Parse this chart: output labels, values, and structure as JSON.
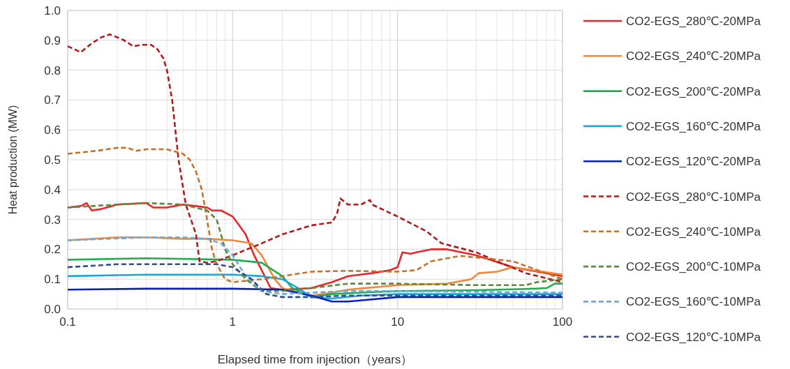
{
  "chart_data": {
    "type": "line",
    "xlabel": "Elapsed time from injection（years）",
    "ylabel": "Heat production (MW)",
    "log": "x",
    "grid": true,
    "legend": "right",
    "xlim": [
      0.1,
      100
    ],
    "xticks": [
      0.1,
      1,
      10,
      100
    ],
    "ylim": [
      0,
      1.0
    ],
    "yticks": [
      {
        "value": 0,
        "label": "0.0"
      },
      0.1,
      0.2,
      0.3,
      0.4,
      0.5,
      0.6,
      0.7,
      0.8,
      0.9,
      {
        "value": 1.0,
        "label": "1.0"
      }
    ],
    "series": [
      {
        "name": "CO2-EGS_280℃-20MPa",
        "color": "#e8262b",
        "line_style": "solid",
        "x": [
          0.1,
          0.12,
          0.13,
          0.14,
          0.16,
          0.2,
          0.3,
          0.33,
          0.4,
          0.5,
          0.6,
          0.7,
          0.75,
          0.85,
          1.0,
          1.2,
          1.35,
          1.5,
          1.7,
          2,
          3,
          4,
          5,
          7,
          9,
          10,
          10.7,
          12,
          13,
          16,
          20,
          30,
          50,
          100
        ],
        "values": [
          0.34,
          0.345,
          0.355,
          0.33,
          0.335,
          0.35,
          0.355,
          0.34,
          0.34,
          0.35,
          0.345,
          0.34,
          0.33,
          0.33,
          0.31,
          0.25,
          0.18,
          0.13,
          0.07,
          0.065,
          0.07,
          0.09,
          0.11,
          0.12,
          0.13,
          0.14,
          0.19,
          0.185,
          0.19,
          0.2,
          0.2,
          0.18,
          0.14,
          0.11
        ]
      },
      {
        "name": "CO2-EGS_240℃-20MPa",
        "color": "#f0883a",
        "line_style": "solid",
        "x": [
          0.1,
          0.2,
          0.3,
          0.5,
          0.7,
          1,
          1.3,
          1.5,
          1.8,
          2,
          2.5,
          3,
          4,
          5,
          10,
          20,
          28,
          31,
          40,
          50,
          100
        ],
        "values": [
          0.23,
          0.24,
          0.24,
          0.235,
          0.235,
          0.23,
          0.22,
          0.18,
          0.1,
          0.07,
          0.055,
          0.045,
          0.055,
          0.065,
          0.08,
          0.085,
          0.1,
          0.12,
          0.125,
          0.14,
          0.115
        ]
      },
      {
        "name": "CO2-EGS_200℃-20MPa",
        "color": "#1fae4f",
        "line_style": "solid",
        "x": [
          0.1,
          0.3,
          1,
          1.5,
          2,
          2.3,
          3,
          4,
          6,
          10,
          30,
          60,
          80,
          90,
          100
        ],
        "values": [
          0.165,
          0.17,
          0.165,
          0.155,
          0.11,
          0.07,
          0.04,
          0.05,
          0.055,
          0.06,
          0.063,
          0.067,
          0.07,
          0.085,
          0.085
        ]
      },
      {
        "name": "CO2-EGS_160℃-20MPa",
        "color": "#1aa7dc",
        "line_style": "solid",
        "x": [
          0.1,
          0.3,
          1,
          1.5,
          2,
          2.5,
          3,
          4,
          6,
          10,
          100
        ],
        "values": [
          0.11,
          0.115,
          0.115,
          0.11,
          0.1,
          0.07,
          0.04,
          0.035,
          0.045,
          0.05,
          0.05
        ]
      },
      {
        "name": "CO2-EGS_120℃-20MPa",
        "color": "#0a1ec8",
        "line_style": "solid",
        "x": [
          0.1,
          0.3,
          1,
          2,
          3,
          4,
          5,
          10,
          100
        ],
        "values": [
          0.065,
          0.068,
          0.068,
          0.065,
          0.045,
          0.025,
          0.025,
          0.04,
          0.04
        ]
      },
      {
        "name": "CO2-EGS_280℃-10MPa",
        "color": "#b01a1a",
        "line_style": "dashed",
        "x": [
          0.1,
          0.11,
          0.12,
          0.14,
          0.16,
          0.18,
          0.2,
          0.22,
          0.25,
          0.28,
          0.32,
          0.35,
          0.38,
          0.4,
          0.43,
          0.47,
          0.52,
          0.6,
          0.63,
          0.7,
          0.8,
          1,
          1.5,
          2,
          3,
          4,
          4.3,
          4.5,
          5,
          6,
          6.8,
          7,
          10,
          15,
          18.5,
          30,
          40,
          60,
          100
        ],
        "values": [
          0.88,
          0.87,
          0.86,
          0.89,
          0.91,
          0.92,
          0.91,
          0.9,
          0.88,
          0.885,
          0.885,
          0.87,
          0.84,
          0.8,
          0.7,
          0.5,
          0.35,
          0.25,
          0.16,
          0.155,
          0.16,
          0.18,
          0.22,
          0.25,
          0.28,
          0.29,
          0.32,
          0.37,
          0.35,
          0.35,
          0.365,
          0.35,
          0.31,
          0.26,
          0.22,
          0.19,
          0.16,
          0.12,
          0.09
        ]
      },
      {
        "name": "CO2-EGS_240℃-10MPa",
        "color": "#c8702a",
        "line_style": "dashed",
        "x": [
          0.1,
          0.15,
          0.2,
          0.23,
          0.26,
          0.3,
          0.4,
          0.5,
          0.55,
          0.6,
          0.65,
          0.7,
          0.75,
          0.8,
          0.9,
          1,
          1.5,
          2,
          3,
          5,
          10,
          13,
          16,
          24,
          50,
          100
        ],
        "values": [
          0.52,
          0.53,
          0.54,
          0.54,
          0.53,
          0.535,
          0.535,
          0.52,
          0.5,
          0.46,
          0.4,
          0.3,
          0.2,
          0.15,
          0.1,
          0.09,
          0.1,
          0.11,
          0.125,
          0.128,
          0.125,
          0.13,
          0.16,
          0.178,
          0.16,
          0.1
        ]
      },
      {
        "name": "CO2-EGS_200℃-10MPa",
        "color": "#5a8a3a",
        "line_style": "dashed",
        "x": [
          0.1,
          0.2,
          0.3,
          0.5,
          0.7,
          0.8,
          0.85,
          0.9,
          1,
          1.2,
          1.5,
          2,
          3,
          5,
          10,
          30,
          60,
          70,
          100
        ],
        "values": [
          0.34,
          0.35,
          0.355,
          0.35,
          0.33,
          0.3,
          0.25,
          0.2,
          0.15,
          0.1,
          0.06,
          0.06,
          0.07,
          0.085,
          0.085,
          0.08,
          0.08,
          0.09,
          0.1
        ]
      },
      {
        "name": "CO2-EGS_160℃-10MPa",
        "color": "#6fa8dc",
        "line_style": "dashed",
        "x": [
          0.1,
          0.3,
          0.5,
          0.7,
          0.85,
          1,
          1.2,
          1.5,
          2,
          3,
          5,
          10,
          100
        ],
        "values": [
          0.23,
          0.24,
          0.24,
          0.235,
          0.22,
          0.18,
          0.11,
          0.06,
          0.05,
          0.055,
          0.06,
          0.06,
          0.055
        ]
      },
      {
        "name": "CO2-EGS_120℃-10MPa",
        "color": "#2f4f8f",
        "line_style": "dashed",
        "x": [
          0.1,
          0.2,
          0.5,
          0.8,
          1,
          1.3,
          1.6,
          2,
          3,
          5,
          10,
          100
        ],
        "values": [
          0.14,
          0.15,
          0.15,
          0.15,
          0.14,
          0.1,
          0.05,
          0.04,
          0.04,
          0.045,
          0.045,
          0.045
        ]
      }
    ]
  }
}
